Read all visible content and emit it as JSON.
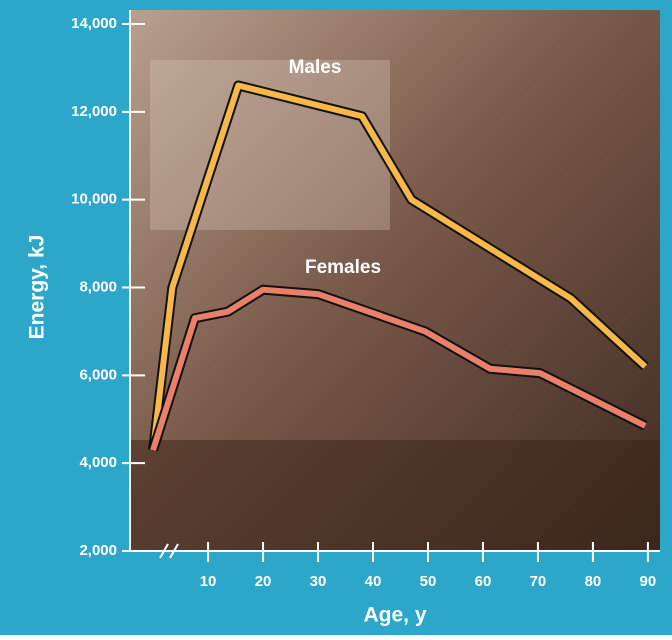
{
  "chart_data": {
    "type": "line",
    "x_label": "Age, y",
    "y_label": "Energy, kJ",
    "xlim": [
      -4.2,
      92.2
    ],
    "xticks": [
      10,
      20,
      30,
      40,
      50,
      60,
      70,
      80,
      90
    ],
    "ylim": [
      2000,
      14000
    ],
    "yticks": [
      {
        "value": 2000,
        "label": "2,000"
      },
      {
        "value": 4000,
        "label": "4,000"
      },
      {
        "value": 6000,
        "label": "6,000"
      },
      {
        "value": 8000,
        "label": "8,000"
      },
      {
        "value": 10000,
        "label": "10,000"
      },
      {
        "value": 12000,
        "label": "12,000"
      },
      {
        "value": 14000,
        "label": "14,000"
      }
    ],
    "series": [
      {
        "name": "Males",
        "color": "#f7b84a",
        "x": [
          0,
          3.5,
          15.5,
          38,
          47,
          76,
          89.5
        ],
        "values": [
          4300,
          8000,
          12600,
          11900,
          10000,
          7750,
          6200
        ]
      },
      {
        "name": "Females",
        "color": "#e8806a",
        "x": [
          0,
          7.6,
          13.6,
          20,
          30,
          49.5,
          61.3,
          70.4,
          89.5
        ],
        "values": [
          4300,
          7300,
          7450,
          7950,
          7850,
          7000,
          6150,
          6050,
          4850
        ]
      }
    ]
  }
}
